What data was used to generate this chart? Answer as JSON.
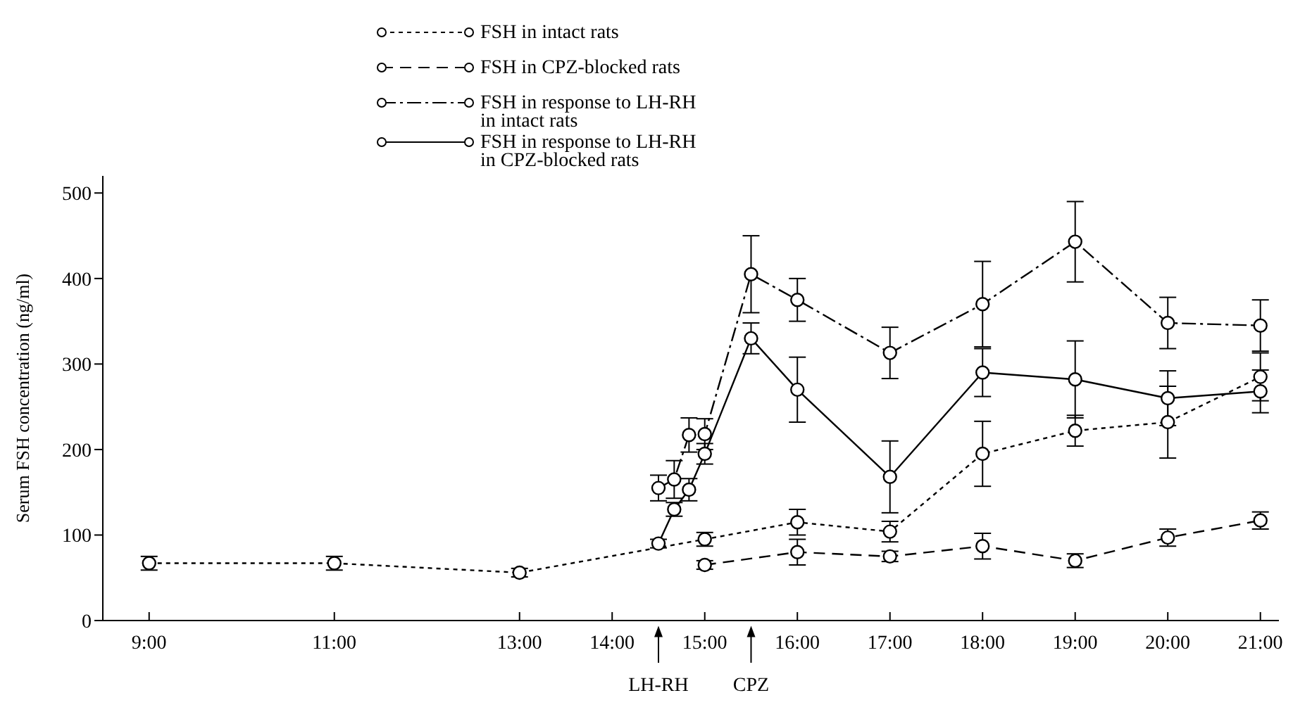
{
  "chart_data": {
    "type": "line",
    "xlabel": null,
    "ylabel": "Serum FSH concentration (ng/ml)",
    "xlim": [
      8.5,
      21.2
    ],
    "xticks": [
      {
        "value": 9,
        "label": "9:00"
      },
      {
        "value": 11,
        "label": "11:00"
      },
      {
        "value": 13,
        "label": "13:00"
      },
      {
        "value": 14,
        "label": "14:00"
      },
      {
        "value": 15,
        "label": "15:00"
      },
      {
        "value": 16,
        "label": "16:00"
      },
      {
        "value": 17,
        "label": "17:00"
      },
      {
        "value": 18,
        "label": "18:00"
      },
      {
        "value": 19,
        "label": "19:00"
      },
      {
        "value": 20,
        "label": "20:00"
      },
      {
        "value": 21,
        "label": "21:00"
      }
    ],
    "ylim": [
      0,
      520
    ],
    "yticks": [
      0,
      100,
      200,
      300,
      400,
      500
    ],
    "grid": false,
    "legend": "top",
    "marker": "circle",
    "series": [
      {
        "name": "FSH in intact rats",
        "color": "#000000",
        "line_style": "dotted",
        "x": [
          9,
          11,
          13,
          15,
          16,
          17,
          18,
          19,
          20,
          21
        ],
        "values": [
          67,
          67,
          56,
          95,
          115,
          104,
          195,
          222,
          232,
          285
        ],
        "errors": [
          8,
          8,
          5,
          8,
          15,
          12,
          38,
          18,
          42,
          28
        ]
      },
      {
        "name": "FSH in CPZ-blocked rats",
        "color": "#000000",
        "line_style": "dashed",
        "x": [
          15,
          16,
          17,
          18,
          19,
          20,
          21
        ],
        "values": [
          65,
          80,
          75,
          87,
          70,
          97,
          117
        ],
        "errors": [
          5,
          15,
          6,
          15,
          8,
          10,
          10
        ]
      },
      {
        "name": "FSH in response to LH-RH\nin intact rats",
        "color": "#000000",
        "line_style": "dashdot",
        "x": [
          14.5,
          14.67,
          14.83,
          15,
          15.5,
          16,
          17,
          18,
          19,
          20,
          21
        ],
        "values": [
          155,
          165,
          217,
          218,
          405,
          375,
          313,
          370,
          443,
          348,
          345
        ],
        "errors": [
          15,
          22,
          20,
          18,
          45,
          25,
          30,
          50,
          47,
          30,
          30
        ]
      },
      {
        "name": "FSH in response to LH-RH\nin CPZ-blocked rats",
        "color": "#000000",
        "line_style": "solid",
        "x": [
          14.5,
          14.67,
          14.83,
          15,
          15.5,
          16,
          17,
          18,
          19,
          20,
          21
        ],
        "values": [
          90,
          130,
          153,
          195,
          330,
          270,
          168,
          290,
          282,
          260,
          268
        ],
        "errors": [
          5,
          8,
          13,
          12,
          18,
          38,
          42,
          28,
          45,
          32,
          25
        ]
      }
    ],
    "ref_lines": [
      {
        "axis": "x",
        "value": 14.5,
        "label": "LH-RH"
      },
      {
        "axis": "x",
        "value": 15.5,
        "label": "CPZ"
      }
    ]
  }
}
